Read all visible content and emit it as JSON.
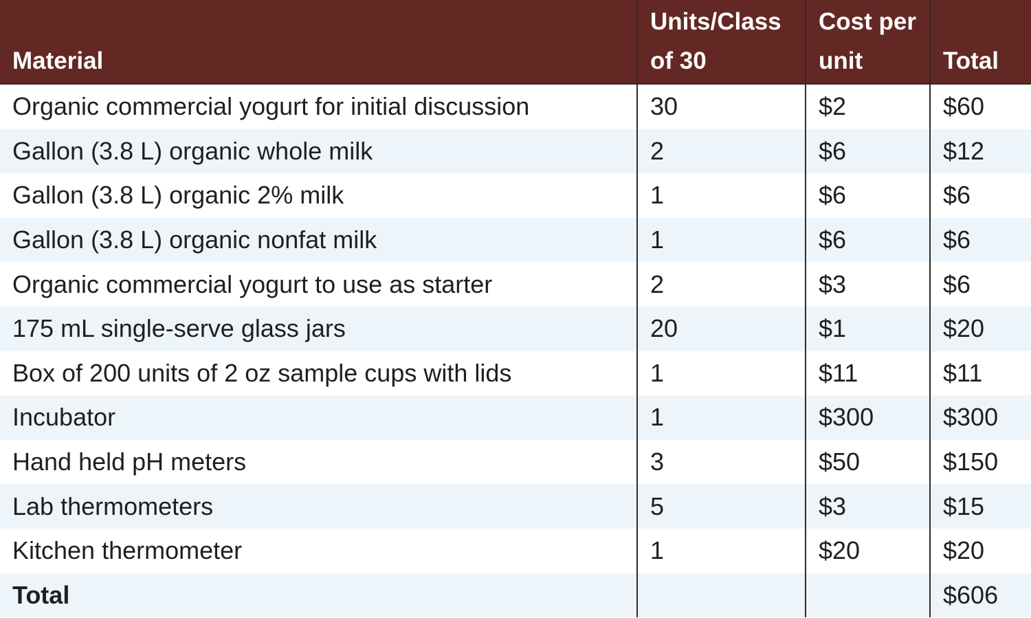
{
  "header": {
    "material": "Material",
    "units": "Units/Class of 30",
    "cost": "Cost per unit",
    "total": "Total"
  },
  "rows": [
    {
      "material": "Organic commercial yogurt for initial discussion",
      "units": "30",
      "cost": "$2",
      "total": "$60"
    },
    {
      "material": "Gallon (3.8 L) organic whole milk",
      "units": "2",
      "cost": "$6",
      "total": "$12"
    },
    {
      "material": "Gallon (3.8 L) organic 2% milk",
      "units": "1",
      "cost": "$6",
      "total": "$6"
    },
    {
      "material": "Gallon (3.8 L) organic nonfat milk",
      "units": "1",
      "cost": "$6",
      "total": "$6"
    },
    {
      "material": "Organic commercial yogurt to use as starter",
      "units": "2",
      "cost": "$3",
      "total": "$6"
    },
    {
      "material": "175 mL single-serve glass jars",
      "units": "20",
      "cost": "$1",
      "total": "$20"
    },
    {
      "material": "Box of 200 units of 2 oz sample cups with lids",
      "units": "1",
      "cost": "$11",
      "total": "$11"
    },
    {
      "material": "Incubator",
      "units": "1",
      "cost": "$300",
      "total": "$300"
    },
    {
      "material": "Hand held pH meters",
      "units": "3",
      "cost": "$50",
      "total": "$150"
    },
    {
      "material": "Lab thermometers",
      "units": "5",
      "cost": "$3",
      "total": "$15"
    },
    {
      "material": "Kitchen thermometer",
      "units": "1",
      "cost": "$20",
      "total": "$20"
    }
  ],
  "footer": {
    "label": "Total",
    "units": "",
    "cost": "",
    "total": "$606"
  },
  "colors": {
    "header_bg": "#632824",
    "row_shade": "#eef5fa"
  }
}
